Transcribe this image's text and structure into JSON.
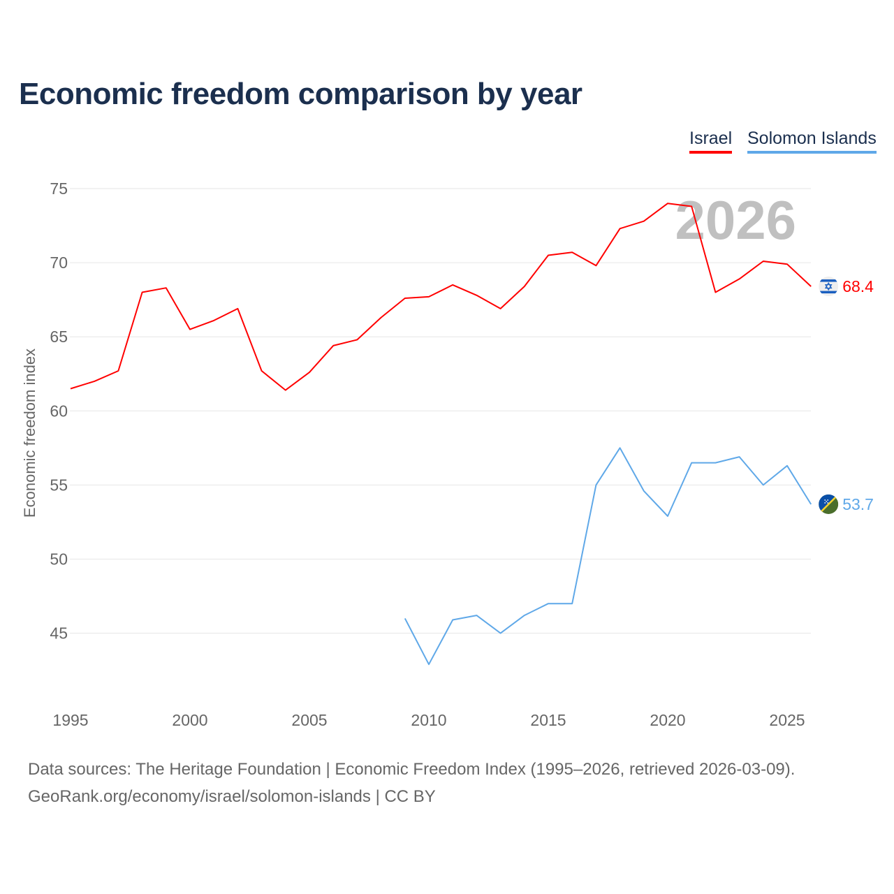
{
  "chart_data": {
    "type": "line",
    "title": "Economic freedom comparison by year",
    "xlabel": "",
    "ylabel": "Economic freedom index",
    "xlim": [
      1995,
      2026
    ],
    "ylim": [
      40,
      75
    ],
    "x_ticks": [
      "1995",
      "2000",
      "2005",
      "2010",
      "2015",
      "2020",
      "2025"
    ],
    "y_ticks": [
      "45",
      "50",
      "55",
      "60",
      "65",
      "70",
      "75"
    ],
    "grid": true,
    "legend_position": "top-right",
    "year_watermark": "2026",
    "series": [
      {
        "name": "Israel",
        "color": "#ff0000",
        "end_label": "68.4",
        "x": [
          1995,
          1996,
          1997,
          1998,
          1999,
          2000,
          2001,
          2002,
          2003,
          2004,
          2005,
          2006,
          2007,
          2008,
          2009,
          2010,
          2011,
          2012,
          2013,
          2014,
          2015,
          2016,
          2017,
          2018,
          2019,
          2020,
          2021,
          2022,
          2023,
          2024,
          2025,
          2026
        ],
        "values": [
          61.5,
          62.0,
          62.7,
          68.0,
          68.3,
          65.5,
          66.1,
          66.9,
          62.7,
          61.4,
          62.6,
          64.4,
          64.8,
          66.3,
          67.6,
          67.7,
          68.5,
          67.8,
          66.9,
          68.4,
          70.5,
          70.7,
          69.8,
          72.3,
          72.8,
          74.0,
          73.8,
          68.0,
          68.9,
          70.1,
          69.9,
          68.4
        ]
      },
      {
        "name": "Solomon Islands",
        "color": "#5fa8e8",
        "end_label": "53.7",
        "x": [
          2009,
          2010,
          2011,
          2012,
          2013,
          2014,
          2015,
          2016,
          2017,
          2018,
          2019,
          2020,
          2021,
          2022,
          2023,
          2024,
          2025,
          2026
        ],
        "values": [
          46.0,
          42.9,
          45.9,
          46.2,
          45.0,
          46.2,
          47.0,
          47.0,
          55.0,
          57.5,
          54.6,
          52.9,
          56.5,
          56.5,
          56.9,
          55.0,
          56.3,
          53.7
        ]
      }
    ]
  },
  "footer": {
    "line1": "Data sources: The Heritage Foundation | Economic Freedom Index (1995–2026, retrieved 2026-03-09).",
    "line2": "GeoRank.org/economy/israel/solomon-islands | CC BY"
  }
}
